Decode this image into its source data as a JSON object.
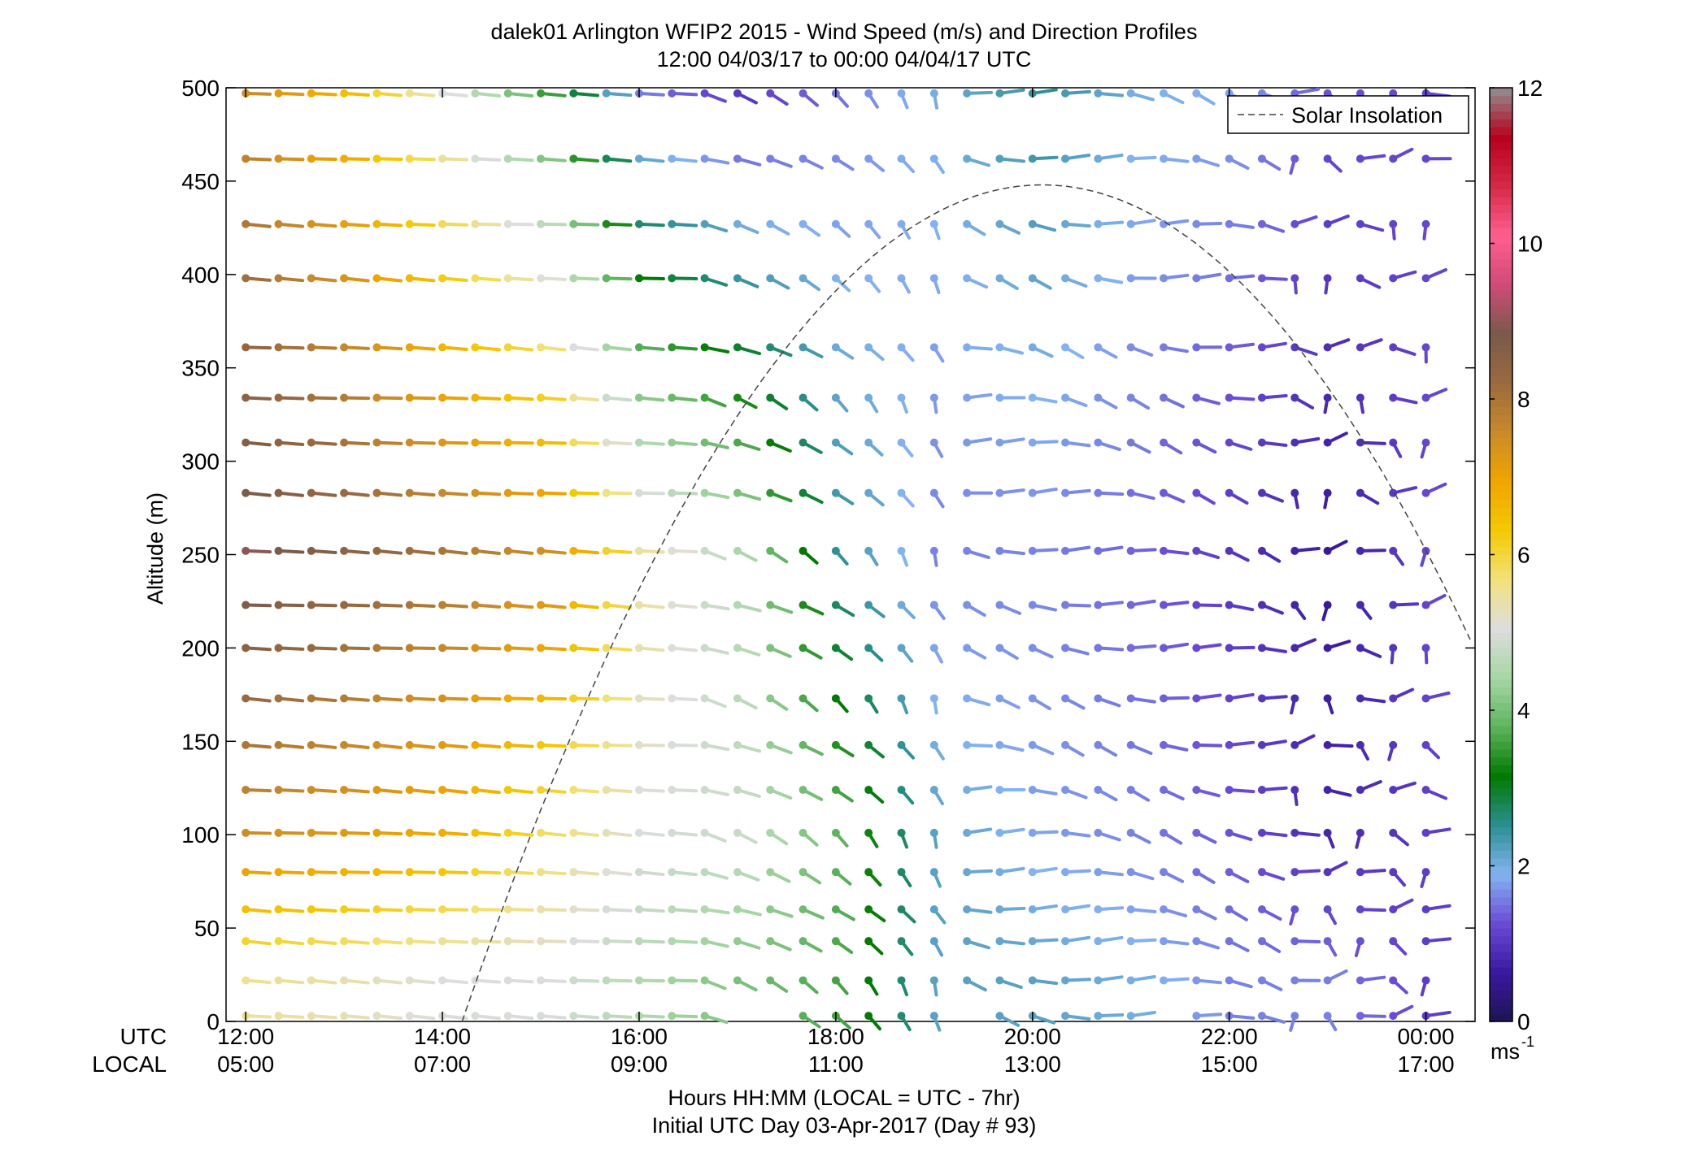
{
  "chart_data": {
    "type": "wind-barb profile",
    "title": "dalek01 Arlington WFIP2 2015 - Wind Speed (m/s) and Direction Profiles",
    "subtitle": "12:00 04/03/17 to 00:00 04/04/17  UTC",
    "ylabel": "Altitude (m)",
    "ylim": [
      0,
      500
    ],
    "yticks": [
      "0",
      "50",
      "100",
      "150",
      "200",
      "250",
      "300",
      "350",
      "400",
      "450",
      "500"
    ],
    "xlim_hours_utc": [
      11.8,
      24.5
    ],
    "utc_row_label": "UTC",
    "local_row_label": "LOCAL",
    "utc_ticks": [
      "12:00",
      "14:00",
      "16:00",
      "18:00",
      "20:00",
      "22:00",
      "00:00"
    ],
    "local_ticks": [
      "05:00",
      "07:00",
      "09:00",
      "11:00",
      "13:00",
      "15:00",
      "17:00"
    ],
    "xlabel": "Hours HH:MM  (LOCAL = UTC - 7hr)",
    "footer": "Initial UTC Day 03-Apr-2017 (Day # 93)",
    "legend": {
      "label": "Solar Insolation",
      "position": "top-right"
    },
    "colorbar": {
      "range": [
        0,
        12
      ],
      "ticks": [
        "0",
        "2",
        "4",
        "6",
        "8",
        "10",
        "12"
      ],
      "unit": "ms",
      "unit_superscript": "-1",
      "colors": [
        "#1e1452",
        "#3a18a0",
        "#6a4bd6",
        "#84b3f2",
        "#2a8f90",
        "#007a00",
        "#5fb45f",
        "#a7d7a5",
        "#dddddd",
        "#f2e27a",
        "#f4c900",
        "#f0a500",
        "#c98a2a",
        "#9a6a3f",
        "#7a5a4a",
        "#d04a78",
        "#ff5f8f",
        "#d42a47",
        "#b8001c",
        "#909090"
      ]
    },
    "altitudes_m": [
      3,
      22,
      43,
      60,
      80,
      101,
      124,
      148,
      173,
      200,
      223,
      252,
      283,
      310,
      334,
      361,
      398,
      427,
      462,
      497
    ],
    "series_desc": "Wind speed (m/s) at each altitude gate, sampled every 20 min from 12:00 to 00:00 UTC; color encodes speed, stick encodes direction.",
    "speed_profile_keyframes": [
      {
        "alt": 500,
        "hours": [
          12,
          13,
          14,
          15,
          16,
          17,
          18,
          19,
          20,
          21,
          22,
          23,
          24
        ],
        "speed": [
          7.5,
          6.5,
          5.0,
          3.5,
          1.5,
          1.0,
          1.5,
          2.0,
          2.5,
          2.0,
          1.8,
          1.3,
          1.2
        ]
      },
      {
        "alt": 250,
        "hours": [
          12,
          13,
          14,
          15,
          16,
          17,
          18,
          19,
          20,
          21,
          22,
          23,
          24
        ],
        "speed": [
          9.0,
          8.5,
          8.0,
          7.5,
          5.5,
          4.5,
          2.5,
          1.6,
          1.6,
          1.4,
          1.0,
          0.6,
          1.2
        ]
      },
      {
        "alt": 100,
        "hours": [
          12,
          13,
          14,
          15,
          16,
          17,
          18,
          19,
          20,
          21,
          22,
          23,
          24
        ],
        "speed": [
          7.5,
          7.2,
          6.8,
          5.8,
          5.0,
          4.8,
          3.8,
          2.2,
          1.8,
          1.6,
          1.3,
          0.8,
          1.1
        ]
      },
      {
        "alt": 20,
        "hours": [
          12,
          13,
          14,
          15,
          16,
          17,
          18,
          19,
          20,
          21,
          22,
          23,
          24
        ],
        "speed": [
          5.5,
          5.3,
          5.0,
          5.0,
          4.5,
          4.0,
          3.6,
          2.2,
          2.2,
          2.0,
          1.6,
          1.6,
          1.1
        ]
      }
    ],
    "solar_insolation_curve": {
      "start_hour": 14.2,
      "peak_hour": 20.1,
      "peak_alt_m": 448,
      "end_hour": 26.0,
      "style": "dashed"
    }
  }
}
